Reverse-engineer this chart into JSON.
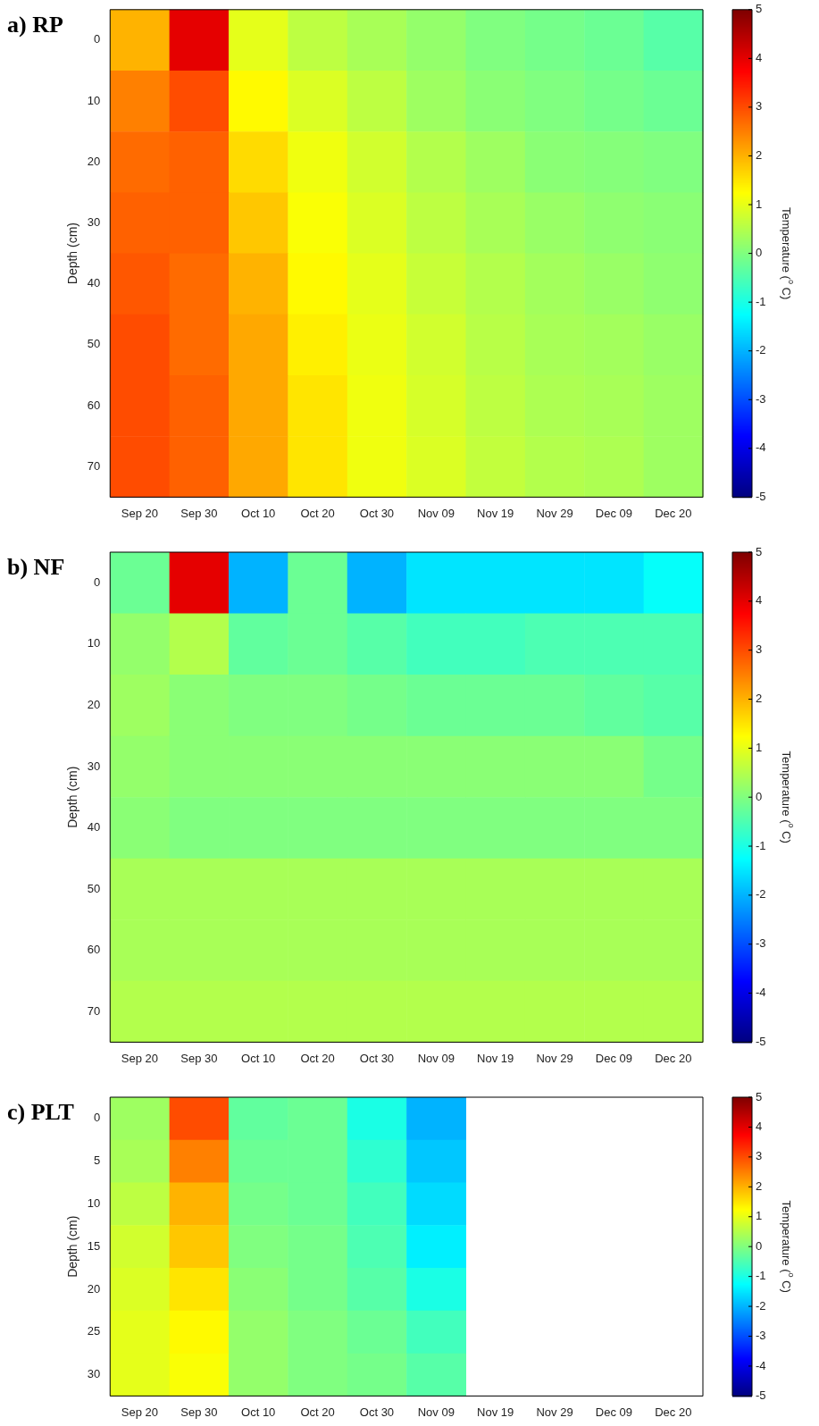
{
  "chart_data": [
    {
      "type": "heatmap",
      "title": "a) RP",
      "ylabel": "Depth (cm)",
      "clabel": "Temperature ($^{o}$ C)",
      "categories": [
        "Sep 20",
        "Sep 30",
        "Oct 10",
        "Oct 20",
        "Oct 30",
        "Nov 09",
        "Nov 19",
        "Nov 29",
        "Dec 09",
        "Dec 20"
      ],
      "y_categories": [
        "0",
        "10",
        "20",
        "30",
        "40",
        "50",
        "60",
        "70"
      ],
      "cells": [
        [
          2,
          4,
          1,
          0.6,
          0.4,
          0.2,
          0,
          -0.1,
          -0.2,
          -0.4
        ],
        [
          2.5,
          3,
          1.3,
          0.9,
          0.6,
          0.3,
          0.1,
          0,
          -0.1,
          -0.2
        ],
        [
          2.7,
          2.8,
          1.6,
          1.1,
          0.8,
          0.5,
          0.3,
          0.1,
          0.05,
          0
        ],
        [
          2.8,
          2.8,
          1.8,
          1.2,
          0.9,
          0.6,
          0.4,
          0.25,
          0.15,
          0.1
        ],
        [
          2.9,
          2.7,
          2,
          1.3,
          1,
          0.7,
          0.5,
          0.35,
          0.25,
          0.15
        ],
        [
          3,
          2.7,
          2.1,
          1.4,
          1.05,
          0.8,
          0.55,
          0.4,
          0.35,
          0.25
        ],
        [
          3,
          2.8,
          2.1,
          1.5,
          1.1,
          0.85,
          0.6,
          0.45,
          0.4,
          0.3
        ],
        [
          3,
          2.8,
          2.1,
          1.5,
          1.1,
          0.9,
          0.65,
          0.5,
          0.45,
          0.3
        ]
      ],
      "clim": [
        -5,
        5
      ],
      "cticks": [
        -5,
        -4,
        -3,
        -2,
        -1,
        0,
        1,
        2,
        3,
        4,
        5
      ]
    },
    {
      "type": "heatmap",
      "title": "b) NF",
      "ylabel": "Depth (cm)",
      "clabel": "Temperature ($^{o}$ C)",
      "categories": [
        "Sep 20",
        "Sep 30",
        "Oct 10",
        "Oct 20",
        "Oct 30",
        "Nov 09",
        "Nov 19",
        "Nov 29",
        "Dec 09",
        "Dec 20"
      ],
      "y_categories": [
        "0",
        "10",
        "20",
        "30",
        "40",
        "50",
        "60",
        "70"
      ],
      "cells": [
        [
          -0.2,
          4,
          -2,
          -0.2,
          -2,
          -1.5,
          -1.5,
          -1.5,
          -1.5,
          -1.2
        ],
        [
          0.2,
          0.5,
          -0.3,
          -0.2,
          -0.4,
          -0.6,
          -0.6,
          -0.5,
          -0.5,
          -0.5
        ],
        [
          0.3,
          0.1,
          0,
          0,
          -0.1,
          -0.2,
          -0.2,
          -0.2,
          -0.3,
          -0.4
        ],
        [
          0.2,
          0.1,
          0.1,
          0.1,
          0.1,
          0.1,
          0.1,
          0.1,
          0.1,
          -0.1
        ],
        [
          0.1,
          0,
          0,
          0,
          0,
          0,
          0,
          0,
          0,
          0
        ],
        [
          0.4,
          0.4,
          0.4,
          0.4,
          0.4,
          0.4,
          0.4,
          0.4,
          0.4,
          0.4
        ],
        [
          0.4,
          0.4,
          0.4,
          0.4,
          0.4,
          0.4,
          0.4,
          0.4,
          0.4,
          0.4
        ],
        [
          0.5,
          0.5,
          0.5,
          0.5,
          0.5,
          0.5,
          0.5,
          0.5,
          0.5,
          0.5
        ]
      ],
      "clim": [
        -5,
        5
      ],
      "cticks": [
        -5,
        -4,
        -3,
        -2,
        -1,
        0,
        1,
        2,
        3,
        4,
        5
      ]
    },
    {
      "type": "heatmap",
      "title": "c) PLT",
      "ylabel": "Depth (cm)",
      "clabel": "Temperature ($^{o}$ C)",
      "categories": [
        "Sep 20",
        "Sep 30",
        "Oct 10",
        "Oct 20",
        "Oct 30",
        "Nov 09",
        "Nov 19",
        "Nov 29",
        "Dec 09",
        "Dec 20"
      ],
      "y_categories": [
        "0",
        "5",
        "10",
        "15",
        "20",
        "25",
        "30"
      ],
      "cells": [
        [
          0.3,
          3,
          -0.3,
          -0.2,
          -1,
          -2,
          null,
          null,
          null,
          null
        ],
        [
          0.4,
          2.5,
          -0.2,
          -0.2,
          -0.8,
          -1.8,
          null,
          null,
          null,
          null
        ],
        [
          0.6,
          2,
          -0.1,
          -0.2,
          -0.6,
          -1.6,
          null,
          null,
          null,
          null
        ],
        [
          0.8,
          1.8,
          0,
          -0.1,
          -0.5,
          -1.4,
          null,
          null,
          null,
          null
        ],
        [
          0.9,
          1.5,
          0.1,
          -0.1,
          -0.4,
          -1,
          null,
          null,
          null,
          null
        ],
        [
          1,
          1.3,
          0.2,
          0,
          -0.2,
          -0.6,
          null,
          null,
          null,
          null
        ],
        [
          1,
          1.2,
          0.2,
          0,
          -0.1,
          -0.4,
          null,
          null,
          null,
          null
        ]
      ],
      "clim": [
        -5,
        5
      ],
      "cticks": [
        -5,
        -4,
        -3,
        -2,
        -1,
        0,
        1,
        2,
        3,
        4,
        5
      ]
    }
  ]
}
